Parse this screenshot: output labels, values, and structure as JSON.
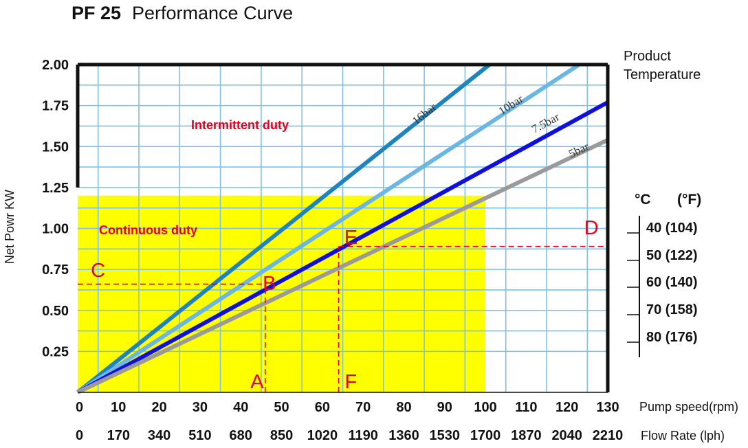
{
  "title": {
    "bold": "PF 25",
    "rest": "Performance Curve"
  },
  "chart_data": {
    "type": "line",
    "ylabel": "Net Powr KW",
    "xlabel_primary": "Pump speed(rpm)",
    "xlabel_secondary": "Flow Rate (lph)",
    "xlim": [
      0,
      130
    ],
    "ylim": [
      0,
      2.0
    ],
    "grid": true,
    "y_ticks": [
      "2.00",
      "1.75",
      "1.50",
      "1.25",
      "1.00",
      "0.75",
      "0.50",
      "0.25"
    ],
    "x_ticks_rpm": [
      "0",
      "10",
      "20",
      "30",
      "40",
      "50",
      "60",
      "70",
      "80",
      "90",
      "100",
      "110",
      "120",
      "130"
    ],
    "x_ticks_flow": [
      "0",
      "170",
      "340",
      "510",
      "680",
      "850",
      "1020",
      "1190",
      "1360",
      "1530",
      "1700",
      "1870",
      "2040",
      "2210"
    ],
    "series": [
      {
        "name": "16bar",
        "color": "#1f84bd",
        "x": [
          0,
          101
        ],
        "y": [
          0.0,
          2.0
        ]
      },
      {
        "name": "10bar",
        "color": "#6bb6e2",
        "x": [
          0,
          123
        ],
        "y": [
          0.0,
          2.0
        ]
      },
      {
        "name": "7.5bar",
        "color": "#1010dd",
        "x": [
          0,
          130
        ],
        "y": [
          0.0,
          1.77
        ]
      },
      {
        "name": "5bar",
        "color": "#9a9a9a",
        "x": [
          0,
          130
        ],
        "y": [
          0.0,
          1.54
        ]
      }
    ],
    "regions": [
      {
        "label": "Intermittent duty",
        "x": [
          0,
          130
        ],
        "y": [
          0,
          2.0
        ]
      },
      {
        "label": "Continuous duty",
        "x": [
          0,
          100
        ],
        "y": [
          0,
          1.2
        ],
        "color": "#ffff00"
      }
    ],
    "reference_lines": [
      {
        "from": "C",
        "to": "B",
        "y": 0.66,
        "x": [
          0,
          46
        ]
      },
      {
        "from": "B",
        "to": "A",
        "x": 46,
        "y": [
          0,
          0.66
        ]
      },
      {
        "from": "D",
        "to": "E",
        "y": 0.89,
        "x": [
          64,
          130
        ]
      },
      {
        "from": "E",
        "to": "F",
        "x": 64,
        "y": [
          0,
          0.89
        ]
      }
    ],
    "markers": [
      {
        "label": "A",
        "x": 44,
        "y": 0.05
      },
      {
        "label": "B",
        "x": 47,
        "y": 0.65
      },
      {
        "label": "C",
        "x": 5,
        "y": 0.73
      },
      {
        "label": "D",
        "x": 126,
        "y": 0.99
      },
      {
        "label": "E",
        "x": 67,
        "y": 0.93
      },
      {
        "label": "F",
        "x": 67,
        "y": 0.05
      }
    ]
  },
  "temperature_scale": {
    "title_line1": "Product",
    "title_line2": "Temperature",
    "unit_c": "°C",
    "unit_f": "(°F)",
    "values": [
      "40 (104)",
      "50 (122)",
      "60 (140)",
      "70 (158)",
      "80 (176)"
    ]
  },
  "colors": {
    "continuous_fill": "#ffff00",
    "grid": "#7fc0e6",
    "reference": "#e3001b",
    "frame": "#111111"
  }
}
